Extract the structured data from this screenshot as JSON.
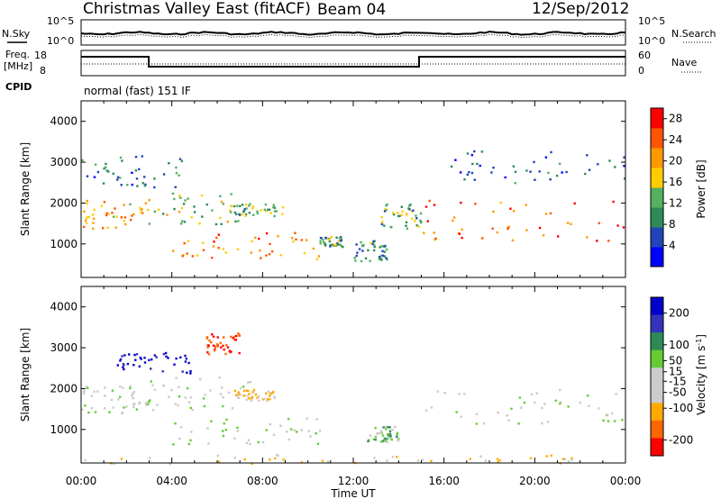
{
  "header": {
    "station": "Christmas Valley East (fitACF)",
    "beam": "Beam 04",
    "date": "12/Sep/2012"
  },
  "left_labels": {
    "nsky": "N.Sky",
    "freq_line1": "Freq.",
    "freq_line2": "[MHz]",
    "cpid": "CPID"
  },
  "right_labels": {
    "nsearch": "N.Search",
    "nave": "Nave"
  },
  "cpid_text": "normal (fast) 151 IF",
  "axis_labels": {
    "slant_range": "Slant Range [km]",
    "time": "Time UT",
    "power": "Power [dB]",
    "velocity_base": "Velocity [m s",
    "velocity_sup": "-1",
    "velocity_end": "]"
  },
  "noise_ticks": {
    "left": [
      "10^5",
      "10^0"
    ],
    "right": [
      "10^5",
      "10^0"
    ]
  },
  "freq_ticks": {
    "left": [
      "18",
      "8"
    ],
    "right": [
      "60",
      "0"
    ]
  },
  "colors": {
    "power_scale": [
      "#0000ff",
      "#2244bb",
      "#2e8b57",
      "#55b060",
      "#ffcc00",
      "#ff9900",
      "#ff5500",
      "#ff0000"
    ],
    "velocity_scale": [
      "#ff0000",
      "#ff6600",
      "#ffaa00",
      "#cccccc",
      "#cccccc",
      "#66cc33",
      "#2e8b57",
      "#3333bb",
      "#0000cc"
    ],
    "ground_scatter": "#c8c8c8"
  },
  "chart_data": [
    {
      "type": "heatmap",
      "name": "power",
      "x_label": "Time UT",
      "y_label": "Slant Range [km]",
      "x_ticks": [
        "00:00",
        "04:00",
        "08:00",
        "12:00",
        "16:00",
        "20:00",
        "00:00"
      ],
      "y_ticks": [
        1000,
        2000,
        3000,
        4000
      ],
      "ylim": [
        180,
        4500
      ],
      "colorbar": {
        "label": "Power [dB]",
        "ticks": [
          4,
          8,
          12,
          16,
          20,
          24,
          28
        ],
        "range": [
          0,
          30
        ]
      },
      "regions": [
        {
          "t0": 0.0,
          "t1": 2.9,
          "r0": 1400,
          "r1": 2100,
          "level": 0.7
        },
        {
          "t0": 0.0,
          "t1": 4.5,
          "r0": 2400,
          "r1": 3200,
          "level": 0.25
        },
        {
          "t0": 2.9,
          "t1": 7.5,
          "r0": 1500,
          "r1": 2300,
          "level": 0.5
        },
        {
          "t0": 4.0,
          "t1": 10.5,
          "r0": 650,
          "r1": 1300,
          "level": 0.75
        },
        {
          "t0": 6.5,
          "t1": 9.0,
          "r0": 1700,
          "r1": 2000,
          "level": 0.4
        },
        {
          "t0": 10.5,
          "t1": 11.5,
          "r0": 950,
          "r1": 1200,
          "level": 0.35
        },
        {
          "t0": 12.0,
          "t1": 13.5,
          "r0": 600,
          "r1": 1100,
          "level": 0.3
        },
        {
          "t0": 13.0,
          "t1": 15.0,
          "r0": 1400,
          "r1": 2000,
          "level": 0.4
        },
        {
          "t0": 15.0,
          "t1": 24.0,
          "r0": 1100,
          "r1": 2100,
          "level": 0.85
        },
        {
          "t0": 16.0,
          "t1": 24.0,
          "r0": 2500,
          "r1": 3300,
          "level": 0.2
        }
      ]
    },
    {
      "type": "heatmap",
      "name": "velocity",
      "x_label": "Time UT",
      "y_label": "Slant Range [km]",
      "x_ticks": [
        "00:00",
        "04:00",
        "08:00",
        "12:00",
        "16:00",
        "20:00",
        "00:00"
      ],
      "y_ticks": [
        1000,
        2000,
        3000,
        4000
      ],
      "ylim": [
        180,
        4500
      ],
      "colorbar": {
        "label": "Velocity [m s-1]",
        "ticks": [
          200,
          100,
          50,
          15,
          -15,
          -50,
          -100,
          -200
        ],
        "range": [
          -250,
          250
        ]
      },
      "regions": [
        {
          "t0": 0.0,
          "t1": 2.9,
          "r0": 1400,
          "r1": 2100,
          "vel": 0
        },
        {
          "t0": 1.5,
          "t1": 5.0,
          "r0": 2400,
          "r1": 2900,
          "vel": 220
        },
        {
          "t0": 5.5,
          "t1": 7.0,
          "r0": 2800,
          "r1": 3400,
          "vel": -200
        },
        {
          "t0": 2.9,
          "t1": 7.5,
          "r0": 1500,
          "r1": 2300,
          "vel": 0
        },
        {
          "t0": 4.0,
          "t1": 10.5,
          "r0": 650,
          "r1": 1300,
          "vel": 0
        },
        {
          "t0": 6.5,
          "t1": 8.5,
          "r0": 1700,
          "r1": 2000,
          "vel": -60
        },
        {
          "t0": 12.5,
          "t1": 14.0,
          "r0": 700,
          "r1": 1100,
          "vel": 40
        },
        {
          "t0": 15.0,
          "t1": 24.0,
          "r0": 1100,
          "r1": 2000,
          "vel": 0
        },
        {
          "t0": 0.0,
          "t1": 24.0,
          "r0": 180,
          "r1": 400,
          "vel": -40
        }
      ]
    }
  ]
}
